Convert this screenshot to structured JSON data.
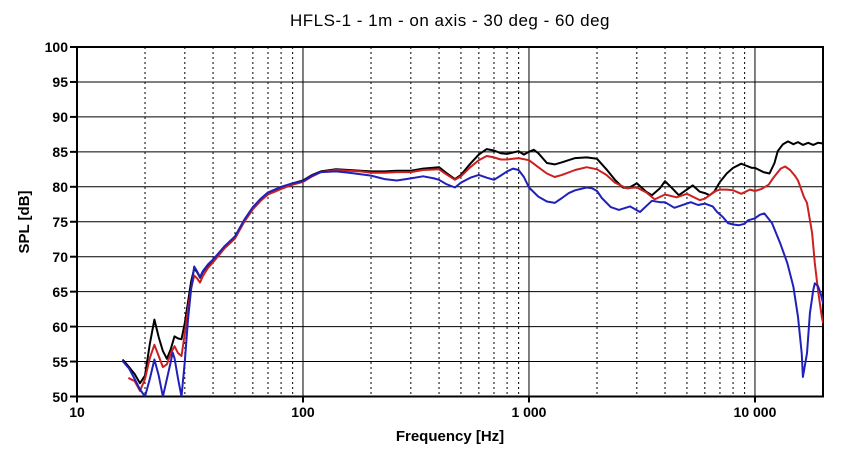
{
  "title": "HFLS-1 - 1m - on axis - 30 deg - 60 deg",
  "chart_data": {
    "type": "line",
    "title": "HFLS-1 - 1m - on axis - 30 deg - 60 deg",
    "xlabel": "Frequency [Hz]",
    "ylabel": "SPL [dB]",
    "x_scale": "log",
    "xlim": [
      10,
      20000
    ],
    "ylim": [
      50,
      100
    ],
    "grid": true,
    "legend_position": "none",
    "background": "#ffffff",
    "frame_color": "#000000",
    "x_major_ticks": [
      {
        "value": 10,
        "label": "10"
      },
      {
        "value": 100,
        "label": "100"
      },
      {
        "value": 1000,
        "label": "1 000"
      },
      {
        "value": 10000,
        "label": "10 000"
      }
    ],
    "x_minor_gridlines": [
      20,
      30,
      40,
      50,
      60,
      70,
      80,
      90,
      200,
      300,
      400,
      500,
      600,
      700,
      800,
      900,
      2000,
      3000,
      4000,
      5000,
      6000,
      7000,
      8000,
      9000
    ],
    "y_ticks": [
      50,
      55,
      60,
      65,
      70,
      75,
      80,
      85,
      90,
      95,
      100
    ],
    "series": [
      {
        "name": "on axis",
        "color": "#000000",
        "points": [
          [
            16,
            55.2
          ],
          [
            17,
            54.2
          ],
          [
            18,
            53.2
          ],
          [
            19,
            51.9
          ],
          [
            20,
            53.0
          ],
          [
            21,
            57.5
          ],
          [
            22,
            61.0
          ],
          [
            23,
            58.5
          ],
          [
            24,
            56.5
          ],
          [
            25,
            55.4
          ],
          [
            26,
            56.8
          ],
          [
            27,
            58.6
          ],
          [
            28,
            58.3
          ],
          [
            29,
            58.2
          ],
          [
            30,
            60.5
          ],
          [
            31,
            63.5
          ],
          [
            32,
            66.5
          ],
          [
            33,
            68.3
          ],
          [
            34,
            67.8
          ],
          [
            35,
            67.0
          ],
          [
            36,
            67.8
          ],
          [
            38,
            68.8
          ],
          [
            40,
            69.5
          ],
          [
            45,
            71.4
          ],
          [
            50,
            72.8
          ],
          [
            55,
            75.2
          ],
          [
            60,
            77.0
          ],
          [
            65,
            78.2
          ],
          [
            70,
            79.1
          ],
          [
            75,
            79.5
          ],
          [
            80,
            79.9
          ],
          [
            90,
            80.5
          ],
          [
            100,
            80.9
          ],
          [
            110,
            81.7
          ],
          [
            120,
            82.2
          ],
          [
            140,
            82.5
          ],
          [
            160,
            82.4
          ],
          [
            180,
            82.3
          ],
          [
            200,
            82.2
          ],
          [
            230,
            82.2
          ],
          [
            260,
            82.3
          ],
          [
            300,
            82.3
          ],
          [
            340,
            82.6
          ],
          [
            400,
            82.8
          ],
          [
            430,
            82.0
          ],
          [
            470,
            81.1
          ],
          [
            500,
            81.7
          ],
          [
            550,
            83.3
          ],
          [
            600,
            84.6
          ],
          [
            650,
            85.4
          ],
          [
            700,
            85.2
          ],
          [
            750,
            84.8
          ],
          [
            800,
            84.7
          ],
          [
            850,
            84.9
          ],
          [
            900,
            85.1
          ],
          [
            950,
            84.6
          ],
          [
            1000,
            85.0
          ],
          [
            1050,
            85.3
          ],
          [
            1100,
            84.8
          ],
          [
            1200,
            83.4
          ],
          [
            1300,
            83.2
          ],
          [
            1400,
            83.5
          ],
          [
            1600,
            84.1
          ],
          [
            1800,
            84.2
          ],
          [
            2000,
            84.0
          ],
          [
            2200,
            82.5
          ],
          [
            2400,
            81.0
          ],
          [
            2600,
            79.9
          ],
          [
            2750,
            79.8
          ],
          [
            3000,
            80.5
          ],
          [
            3300,
            79.3
          ],
          [
            3500,
            78.8
          ],
          [
            3800,
            79.8
          ],
          [
            4000,
            80.8
          ],
          [
            4300,
            79.8
          ],
          [
            4600,
            78.8
          ],
          [
            5000,
            79.6
          ],
          [
            5300,
            80.2
          ],
          [
            5700,
            79.3
          ],
          [
            6000,
            79.1
          ],
          [
            6300,
            78.8
          ],
          [
            6600,
            79.3
          ],
          [
            7000,
            80.7
          ],
          [
            7500,
            81.9
          ],
          [
            8000,
            82.7
          ],
          [
            8700,
            83.3
          ],
          [
            9000,
            83.1
          ],
          [
            9700,
            82.7
          ],
          [
            10000,
            82.7
          ],
          [
            10900,
            82.1
          ],
          [
            11600,
            81.9
          ],
          [
            12200,
            83.4
          ],
          [
            12600,
            85.1
          ],
          [
            13300,
            86.1
          ],
          [
            14000,
            86.5
          ],
          [
            14800,
            86.1
          ],
          [
            15500,
            86.4
          ],
          [
            16300,
            86.0
          ],
          [
            17200,
            86.3
          ],
          [
            18100,
            86.0
          ],
          [
            19000,
            86.3
          ],
          [
            20000,
            86.2
          ]
        ]
      },
      {
        "name": "30 deg",
        "color": "#cc2020",
        "points": [
          [
            17,
            52.6
          ],
          [
            18,
            52.2
          ],
          [
            19,
            50.8
          ],
          [
            20,
            52.5
          ],
          [
            21,
            55.5
          ],
          [
            22,
            57.4
          ],
          [
            23,
            55.8
          ],
          [
            24,
            54.2
          ],
          [
            25,
            54.6
          ],
          [
            26,
            56.2
          ],
          [
            27,
            57.2
          ],
          [
            28,
            56.2
          ],
          [
            29,
            55.8
          ],
          [
            30,
            59.0
          ],
          [
            31,
            62.5
          ],
          [
            32,
            65.5
          ],
          [
            33,
            67.3
          ],
          [
            34,
            66.9
          ],
          [
            35,
            66.3
          ],
          [
            36,
            67.2
          ],
          [
            38,
            68.4
          ],
          [
            40,
            69.2
          ],
          [
            45,
            71.2
          ],
          [
            50,
            72.6
          ],
          [
            55,
            75.0
          ],
          [
            60,
            76.8
          ],
          [
            65,
            78.0
          ],
          [
            70,
            78.9
          ],
          [
            75,
            79.3
          ],
          [
            80,
            79.7
          ],
          [
            90,
            80.3
          ],
          [
            100,
            80.7
          ],
          [
            110,
            81.5
          ],
          [
            120,
            82.1
          ],
          [
            140,
            82.4
          ],
          [
            160,
            82.3
          ],
          [
            180,
            82.2
          ],
          [
            200,
            82.0
          ],
          [
            230,
            82.0
          ],
          [
            260,
            82.1
          ],
          [
            300,
            82.1
          ],
          [
            340,
            82.4
          ],
          [
            400,
            82.5
          ],
          [
            430,
            81.8
          ],
          [
            470,
            81.0
          ],
          [
            500,
            81.5
          ],
          [
            550,
            82.8
          ],
          [
            600,
            83.8
          ],
          [
            650,
            84.4
          ],
          [
            700,
            84.2
          ],
          [
            750,
            83.9
          ],
          [
            800,
            83.9
          ],
          [
            850,
            84.0
          ],
          [
            900,
            84.1
          ],
          [
            1000,
            83.8
          ],
          [
            1100,
            82.8
          ],
          [
            1200,
            81.9
          ],
          [
            1300,
            81.4
          ],
          [
            1400,
            81.7
          ],
          [
            1600,
            82.4
          ],
          [
            1800,
            82.8
          ],
          [
            2000,
            82.5
          ],
          [
            2200,
            81.7
          ],
          [
            2400,
            80.6
          ],
          [
            2700,
            79.8
          ],
          [
            3000,
            79.9
          ],
          [
            3300,
            79.2
          ],
          [
            3600,
            78.2
          ],
          [
            4000,
            78.9
          ],
          [
            4500,
            78.5
          ],
          [
            5000,
            79.0
          ],
          [
            5700,
            78.1
          ],
          [
            6000,
            78.3
          ],
          [
            6700,
            79.4
          ],
          [
            7000,
            79.6
          ],
          [
            7500,
            79.6
          ],
          [
            8000,
            79.5
          ],
          [
            8700,
            79.0
          ],
          [
            9500,
            79.6
          ],
          [
            10000,
            79.4
          ],
          [
            10700,
            79.7
          ],
          [
            11500,
            80.3
          ],
          [
            12000,
            81.2
          ],
          [
            13000,
            82.6
          ],
          [
            13600,
            82.9
          ],
          [
            14300,
            82.4
          ],
          [
            15000,
            81.6
          ],
          [
            15500,
            80.9
          ],
          [
            16500,
            78.5
          ],
          [
            17000,
            77.7
          ],
          [
            17900,
            73.4
          ],
          [
            18400,
            69.1
          ],
          [
            19000,
            65.2
          ],
          [
            19800,
            61.2
          ],
          [
            20000,
            60.6
          ]
        ]
      },
      {
        "name": "60 deg",
        "color": "#2020bb",
        "points": [
          [
            16,
            55.0
          ],
          [
            17,
            54.0
          ],
          [
            18,
            52.5
          ],
          [
            19,
            51.0
          ],
          [
            20,
            50.0
          ],
          [
            21,
            52.5
          ],
          [
            22,
            55.3
          ],
          [
            23,
            53.0
          ],
          [
            24,
            50.0
          ],
          [
            25,
            52.5
          ],
          [
            26,
            55.0
          ],
          [
            26.5,
            56.3
          ],
          [
            27,
            55.5
          ],
          [
            28,
            52.5
          ],
          [
            29,
            50.0
          ],
          [
            30,
            55.0
          ],
          [
            31,
            61.0
          ],
          [
            32,
            65.5
          ],
          [
            33,
            68.6
          ],
          [
            34,
            67.9
          ],
          [
            35,
            67.1
          ],
          [
            36,
            67.9
          ],
          [
            38,
            68.9
          ],
          [
            40,
            69.6
          ],
          [
            45,
            71.5
          ],
          [
            50,
            72.9
          ],
          [
            55,
            75.3
          ],
          [
            60,
            77.1
          ],
          [
            65,
            78.3
          ],
          [
            70,
            79.2
          ],
          [
            75,
            79.6
          ],
          [
            80,
            80.0
          ],
          [
            90,
            80.5
          ],
          [
            100,
            80.8
          ],
          [
            110,
            81.6
          ],
          [
            120,
            82.1
          ],
          [
            140,
            82.2
          ],
          [
            160,
            82.0
          ],
          [
            180,
            81.8
          ],
          [
            200,
            81.6
          ],
          [
            230,
            81.1
          ],
          [
            260,
            80.9
          ],
          [
            300,
            81.2
          ],
          [
            340,
            81.5
          ],
          [
            380,
            81.2
          ],
          [
            400,
            81.0
          ],
          [
            430,
            80.4
          ],
          [
            470,
            79.9
          ],
          [
            500,
            80.6
          ],
          [
            550,
            81.3
          ],
          [
            600,
            81.7
          ],
          [
            650,
            81.3
          ],
          [
            700,
            81.0
          ],
          [
            750,
            81.6
          ],
          [
            800,
            82.2
          ],
          [
            850,
            82.6
          ],
          [
            900,
            82.4
          ],
          [
            950,
            81.4
          ],
          [
            1000,
            79.9
          ],
          [
            1100,
            78.6
          ],
          [
            1200,
            77.9
          ],
          [
            1300,
            77.7
          ],
          [
            1400,
            78.4
          ],
          [
            1500,
            79.1
          ],
          [
            1600,
            79.5
          ],
          [
            1800,
            79.9
          ],
          [
            1900,
            79.8
          ],
          [
            2000,
            79.4
          ],
          [
            2100,
            78.4
          ],
          [
            2300,
            77.1
          ],
          [
            2500,
            76.7
          ],
          [
            2800,
            77.2
          ],
          [
            3100,
            76.4
          ],
          [
            3500,
            78.0
          ],
          [
            3800,
            77.8
          ],
          [
            4000,
            77.8
          ],
          [
            4400,
            77.0
          ],
          [
            5200,
            77.8
          ],
          [
            5600,
            77.4
          ],
          [
            6000,
            77.6
          ],
          [
            6500,
            77.2
          ],
          [
            6800,
            76.4
          ],
          [
            7200,
            75.7
          ],
          [
            7600,
            74.8
          ],
          [
            8000,
            74.6
          ],
          [
            8500,
            74.5
          ],
          [
            9000,
            74.7
          ],
          [
            9300,
            75.2
          ],
          [
            10000,
            75.5
          ],
          [
            10500,
            76.0
          ],
          [
            11000,
            76.2
          ],
          [
            11900,
            74.8
          ],
          [
            12900,
            72.0
          ],
          [
            13900,
            69.1
          ],
          [
            14800,
            65.7
          ],
          [
            15500,
            61.4
          ],
          [
            16100,
            56.2
          ],
          [
            16300,
            52.8
          ],
          [
            17000,
            56.2
          ],
          [
            17500,
            61.9
          ],
          [
            18100,
            65.2
          ],
          [
            18400,
            66.2
          ],
          [
            19000,
            65.8
          ],
          [
            19500,
            64.8
          ],
          [
            20000,
            63.4
          ]
        ]
      }
    ]
  }
}
